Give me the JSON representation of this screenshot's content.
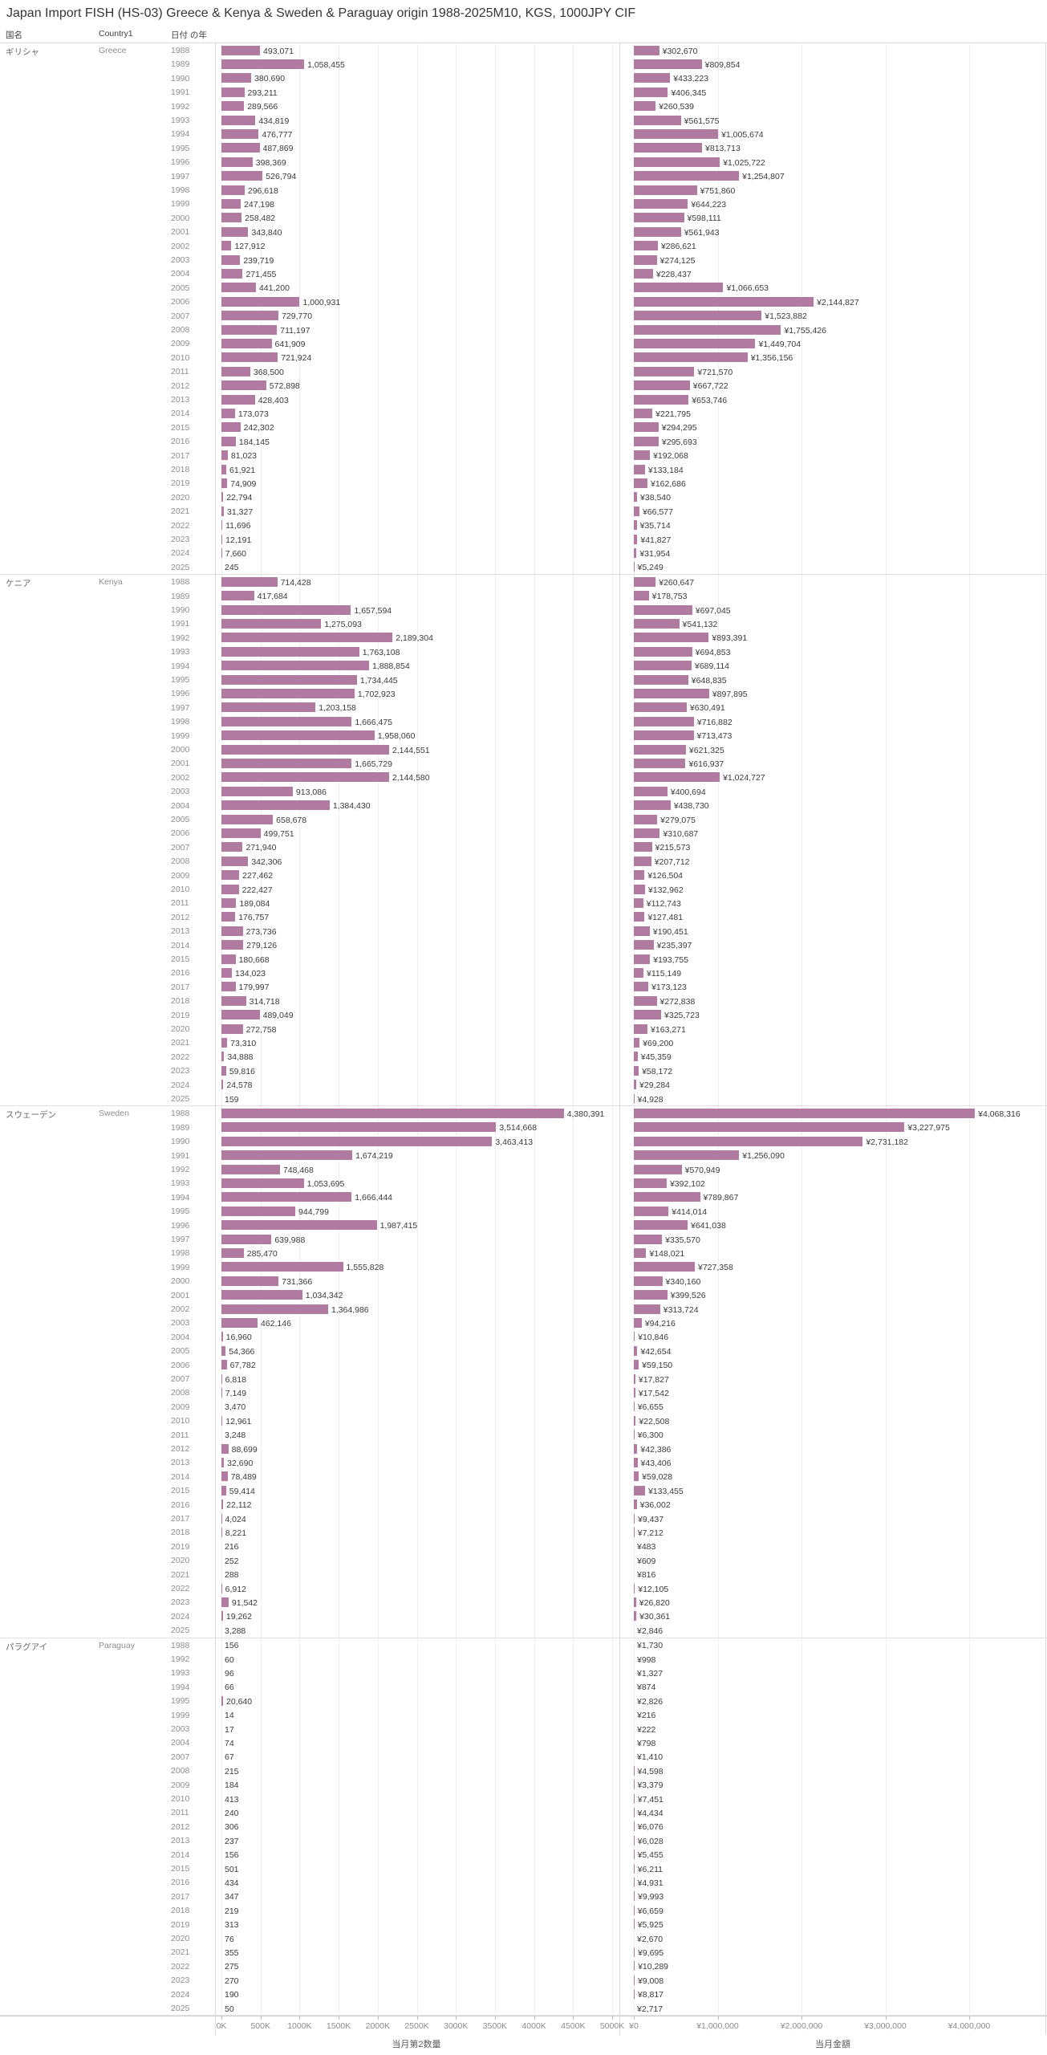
{
  "title": "Japan Import FISH (HS-03) Greece & Kenya & Sweden & Paraguay origin 1988-2025M10, KGS, 1000JPY CIF",
  "columns": {
    "country_jp": "国名",
    "country_en": "Country1",
    "year": "日付 の年"
  },
  "colors": {
    "bar": "#b07aa1",
    "grid_dotted": "#e4dde3",
    "panel_border": "#d9d9d9"
  },
  "chart_data": {
    "type": "bar",
    "orientation": "horizontal",
    "row_format": [
      "year",
      "quantity_kgs",
      "amount_1000jpy"
    ],
    "panels": [
      {
        "id": "quantity",
        "title": "当月第2数量",
        "value_prefix": "",
        "ticks": [
          "0K",
          "500K",
          "1000K",
          "1500K",
          "2000K",
          "2500K",
          "3000K",
          "3500K",
          "4000K",
          "4500K",
          "5000K"
        ],
        "tick_values": [
          0,
          500000,
          1000000,
          1500000,
          2000000,
          2500000,
          3000000,
          3500000,
          4000000,
          4500000,
          5000000
        ],
        "axis_max": 5000000
      },
      {
        "id": "amount",
        "title": "当月金額",
        "value_prefix": "¥",
        "ticks": [
          "¥0",
          "¥1,000,000",
          "¥2,000,000",
          "¥3,000,000",
          "¥4,000,000"
        ],
        "tick_values": [
          0,
          1000000,
          2000000,
          3000000,
          4000000
        ],
        "axis_max": 4900000
      }
    ],
    "sections": [
      {
        "country_jp": "ギリシャ",
        "country_en": "Greece",
        "rows": [
          [
            "1988",
            493071,
            302670
          ],
          [
            "1989",
            1058455,
            809854
          ],
          [
            "1990",
            380690,
            433223
          ],
          [
            "1991",
            293211,
            406345
          ],
          [
            "1992",
            289566,
            260539
          ],
          [
            "1993",
            434819,
            561575
          ],
          [
            "1994",
            476777,
            1005674
          ],
          [
            "1995",
            487869,
            813713
          ],
          [
            "1996",
            398369,
            1025722
          ],
          [
            "1997",
            526794,
            1254807
          ],
          [
            "1998",
            296618,
            751860
          ],
          [
            "1999",
            247198,
            644223
          ],
          [
            "2000",
            258482,
            598111
          ],
          [
            "2001",
            343840,
            561943
          ],
          [
            "2002",
            127912,
            286621
          ],
          [
            "2003",
            239719,
            274125
          ],
          [
            "2004",
            271455,
            228437
          ],
          [
            "2005",
            441200,
            1066653
          ],
          [
            "2006",
            1000931,
            2144827
          ],
          [
            "2007",
            729770,
            1523882
          ],
          [
            "2008",
            711197,
            1755426
          ],
          [
            "2009",
            641909,
            1449704
          ],
          [
            "2010",
            721924,
            1356156
          ],
          [
            "2011",
            368500,
            721570
          ],
          [
            "2012",
            572898,
            667722
          ],
          [
            "2013",
            428403,
            653746
          ],
          [
            "2014",
            173073,
            221795
          ],
          [
            "2015",
            242302,
            294295
          ],
          [
            "2016",
            184145,
            295693
          ],
          [
            "2017",
            81023,
            192068
          ],
          [
            "2018",
            61921,
            133184
          ],
          [
            "2019",
            74909,
            162686
          ],
          [
            "2020",
            22794,
            38540
          ],
          [
            "2021",
            31327,
            66577
          ],
          [
            "2022",
            11696,
            35714
          ],
          [
            "2023",
            12191,
            41827
          ],
          [
            "2024",
            7660,
            31954
          ],
          [
            "2025",
            245,
            5249
          ]
        ]
      },
      {
        "country_jp": "ケニア",
        "country_en": "Kenya",
        "rows": [
          [
            "1988",
            714428,
            260647
          ],
          [
            "1989",
            417684,
            178753
          ],
          [
            "1990",
            1657594,
            697045
          ],
          [
            "1991",
            1275093,
            541132
          ],
          [
            "1992",
            2189304,
            893391
          ],
          [
            "1993",
            1763108,
            694853
          ],
          [
            "1994",
            1888854,
            689114
          ],
          [
            "1995",
            1734445,
            648835
          ],
          [
            "1996",
            1702923,
            897895
          ],
          [
            "1997",
            1203158,
            630491
          ],
          [
            "1998",
            1666475,
            716882
          ],
          [
            "1999",
            1958060,
            713473
          ],
          [
            "2000",
            2144551,
            621325
          ],
          [
            "2001",
            1665729,
            616937
          ],
          [
            "2002",
            2144580,
            1024727
          ],
          [
            "2003",
            913086,
            400694
          ],
          [
            "2004",
            1384430,
            438730
          ],
          [
            "2005",
            658678,
            279075
          ],
          [
            "2006",
            499751,
            310687
          ],
          [
            "2007",
            271940,
            215573
          ],
          [
            "2008",
            342306,
            207712
          ],
          [
            "2009",
            227462,
            126504
          ],
          [
            "2010",
            222427,
            132962
          ],
          [
            "2011",
            189084,
            112743
          ],
          [
            "2012",
            176757,
            127481
          ],
          [
            "2013",
            273736,
            190451
          ],
          [
            "2014",
            279126,
            235397
          ],
          [
            "2015",
            180668,
            193755
          ],
          [
            "2016",
            134023,
            115149
          ],
          [
            "2017",
            179997,
            173123
          ],
          [
            "2018",
            314718,
            272838
          ],
          [
            "2019",
            489049,
            325723
          ],
          [
            "2020",
            272758,
            163271
          ],
          [
            "2021",
            73310,
            69200
          ],
          [
            "2022",
            34888,
            45359
          ],
          [
            "2023",
            59816,
            58172
          ],
          [
            "2024",
            24578,
            29284
          ],
          [
            "2025",
            159,
            4928
          ]
        ]
      },
      {
        "country_jp": "スウェーデン",
        "country_en": "Sweden",
        "rows": [
          [
            "1988",
            4380391,
            4068316
          ],
          [
            "1989",
            3514668,
            3227975
          ],
          [
            "1990",
            3463413,
            2731182
          ],
          [
            "1991",
            1674219,
            1256090
          ],
          [
            "1992",
            748468,
            570949
          ],
          [
            "1993",
            1053695,
            392102
          ],
          [
            "1994",
            1666444,
            789867
          ],
          [
            "1995",
            944799,
            414014
          ],
          [
            "1996",
            1987415,
            641038
          ],
          [
            "1997",
            639988,
            335570
          ],
          [
            "1998",
            285470,
            148021
          ],
          [
            "1999",
            1555828,
            727358
          ],
          [
            "2000",
            731366,
            340160
          ],
          [
            "2001",
            1034342,
            399526
          ],
          [
            "2002",
            1364986,
            313724
          ],
          [
            "2003",
            462146,
            94216
          ],
          [
            "2004",
            16960,
            10846
          ],
          [
            "2005",
            54366,
            42654
          ],
          [
            "2006",
            67782,
            59150
          ],
          [
            "2007",
            6818,
            17827
          ],
          [
            "2008",
            7149,
            17542
          ],
          [
            "2009",
            3470,
            6655
          ],
          [
            "2010",
            12961,
            22508
          ],
          [
            "2011",
            3248,
            6300
          ],
          [
            "2012",
            88699,
            42386
          ],
          [
            "2013",
            32690,
            43406
          ],
          [
            "2014",
            78489,
            59028
          ],
          [
            "2015",
            59414,
            133455
          ],
          [
            "2016",
            22112,
            36002
          ],
          [
            "2017",
            4024,
            9437
          ],
          [
            "2018",
            8221,
            7212
          ],
          [
            "2019",
            216,
            483
          ],
          [
            "2020",
            252,
            609
          ],
          [
            "2021",
            288,
            816
          ],
          [
            "2022",
            6912,
            12105
          ],
          [
            "2023",
            91542,
            26820
          ],
          [
            "2024",
            19262,
            30361
          ],
          [
            "2025",
            3288,
            2846
          ]
        ]
      },
      {
        "country_jp": "パラグアイ",
        "country_en": "Paraguay",
        "rows": [
          [
            "1988",
            156,
            1730
          ],
          [
            "1992",
            60,
            998
          ],
          [
            "1993",
            96,
            1327
          ],
          [
            "1994",
            66,
            874
          ],
          [
            "1995",
            20640,
            2826
          ],
          [
            "1999",
            14,
            216
          ],
          [
            "2003",
            17,
            222
          ],
          [
            "2004",
            74,
            798
          ],
          [
            "2007",
            67,
            1410
          ],
          [
            "2008",
            215,
            4598
          ],
          [
            "2009",
            184,
            3379
          ],
          [
            "2010",
            413,
            7451
          ],
          [
            "2011",
            240,
            4434
          ],
          [
            "2012",
            306,
            6076
          ],
          [
            "2013",
            237,
            6028
          ],
          [
            "2014",
            156,
            5455
          ],
          [
            "2015",
            501,
            6211
          ],
          [
            "2016",
            434,
            4931
          ],
          [
            "2017",
            347,
            9993
          ],
          [
            "2018",
            219,
            6659
          ],
          [
            "2019",
            313,
            5925
          ],
          [
            "2020",
            76,
            2670
          ],
          [
            "2021",
            355,
            9695
          ],
          [
            "2022",
            275,
            10289
          ],
          [
            "2023",
            270,
            9008
          ],
          [
            "2024",
            190,
            8817
          ],
          [
            "2025",
            50,
            2717
          ]
        ]
      }
    ]
  }
}
